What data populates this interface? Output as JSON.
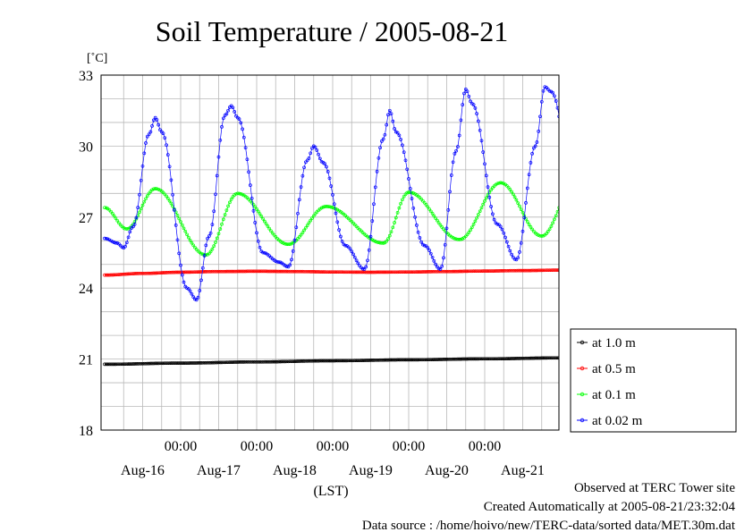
{
  "chart_data": {
    "type": "line",
    "title": "Soil Temperature / 2005-08-21",
    "ylabel": "[˚C]",
    "xlabel": "(LST)",
    "ylim": [
      18,
      33
    ],
    "yticks": [
      18,
      21,
      24,
      27,
      30,
      33
    ],
    "x_time_ticks": [
      "00:00",
      "00:00",
      "00:00",
      "00:00",
      "00:00"
    ],
    "x_date_labels": [
      "Aug-16",
      "Aug-17",
      "Aug-18",
      "Aug-19",
      "Aug-20",
      "Aug-21"
    ],
    "x_range_hours": [
      0,
      144
    ],
    "grid": true,
    "legend_position": "right",
    "series": [
      {
        "name": "at 1.0 m",
        "color": "#000000",
        "points": [
          [
            0,
            20.78
          ],
          [
            24,
            20.83
          ],
          [
            48,
            20.88
          ],
          [
            72,
            20.93
          ],
          [
            96,
            20.97
          ],
          [
            120,
            21.01
          ],
          [
            144,
            21.05
          ]
        ]
      },
      {
        "name": "at 0.5 m",
        "color": "#ff0000",
        "points": [
          [
            0,
            24.55
          ],
          [
            12,
            24.62
          ],
          [
            24,
            24.67
          ],
          [
            36,
            24.7
          ],
          [
            48,
            24.71
          ],
          [
            60,
            24.7
          ],
          [
            72,
            24.68
          ],
          [
            84,
            24.67
          ],
          [
            96,
            24.68
          ],
          [
            108,
            24.7
          ],
          [
            120,
            24.72
          ],
          [
            132,
            24.74
          ],
          [
            144,
            24.76
          ]
        ]
      },
      {
        "name": "at 0.1 m",
        "color": "#00ff00",
        "points": [
          [
            0,
            27.4
          ],
          [
            7,
            26.5
          ],
          [
            16,
            28.2
          ],
          [
            32,
            25.4
          ],
          [
            42,
            28.0
          ],
          [
            58,
            25.85
          ],
          [
            70,
            27.45
          ],
          [
            88,
            25.9
          ],
          [
            96,
            28.05
          ],
          [
            112,
            26.05
          ],
          [
            125,
            28.45
          ],
          [
            138,
            26.2
          ],
          [
            149,
            28.6
          ],
          [
            156,
            27.5
          ]
        ]
      },
      {
        "name": "at 0.02 m",
        "color": "#0000ff",
        "points": [
          [
            0,
            26.1
          ],
          [
            4,
            25.9
          ],
          [
            6,
            25.7
          ],
          [
            9,
            26.6
          ],
          [
            14,
            30.5
          ],
          [
            16,
            31.2
          ],
          [
            18,
            30.6
          ],
          [
            26,
            24.0
          ],
          [
            29,
            23.5
          ],
          [
            33,
            26.2
          ],
          [
            38,
            31.3
          ],
          [
            40,
            31.7
          ],
          [
            42,
            31.2
          ],
          [
            50,
            25.5
          ],
          [
            55,
            25.1
          ],
          [
            58,
            24.9
          ],
          [
            64,
            29.4
          ],
          [
            66,
            30.0
          ],
          [
            69,
            29.3
          ],
          [
            76,
            25.8
          ],
          [
            82,
            24.8
          ],
          [
            88,
            30.3
          ],
          [
            90,
            31.5
          ],
          [
            92,
            30.6
          ],
          [
            101,
            25.8
          ],
          [
            106,
            24.8
          ],
          [
            111,
            29.8
          ],
          [
            114,
            32.4
          ],
          [
            116,
            31.8
          ],
          [
            124,
            26.7
          ],
          [
            130,
            25.2
          ],
          [
            136,
            30.0
          ],
          [
            139,
            32.5
          ],
          [
            141,
            32.3
          ],
          [
            149,
            27.6
          ],
          [
            156,
            26.9
          ]
        ]
      }
    ]
  },
  "footer": {
    "observed": "Observed at TERC Tower site",
    "created": "Created Automatically at 2005-08-21/23:32:04",
    "source": "Data source : /home/hoivo/new/TERC-data/sorted  data/MET.30m.dat"
  }
}
